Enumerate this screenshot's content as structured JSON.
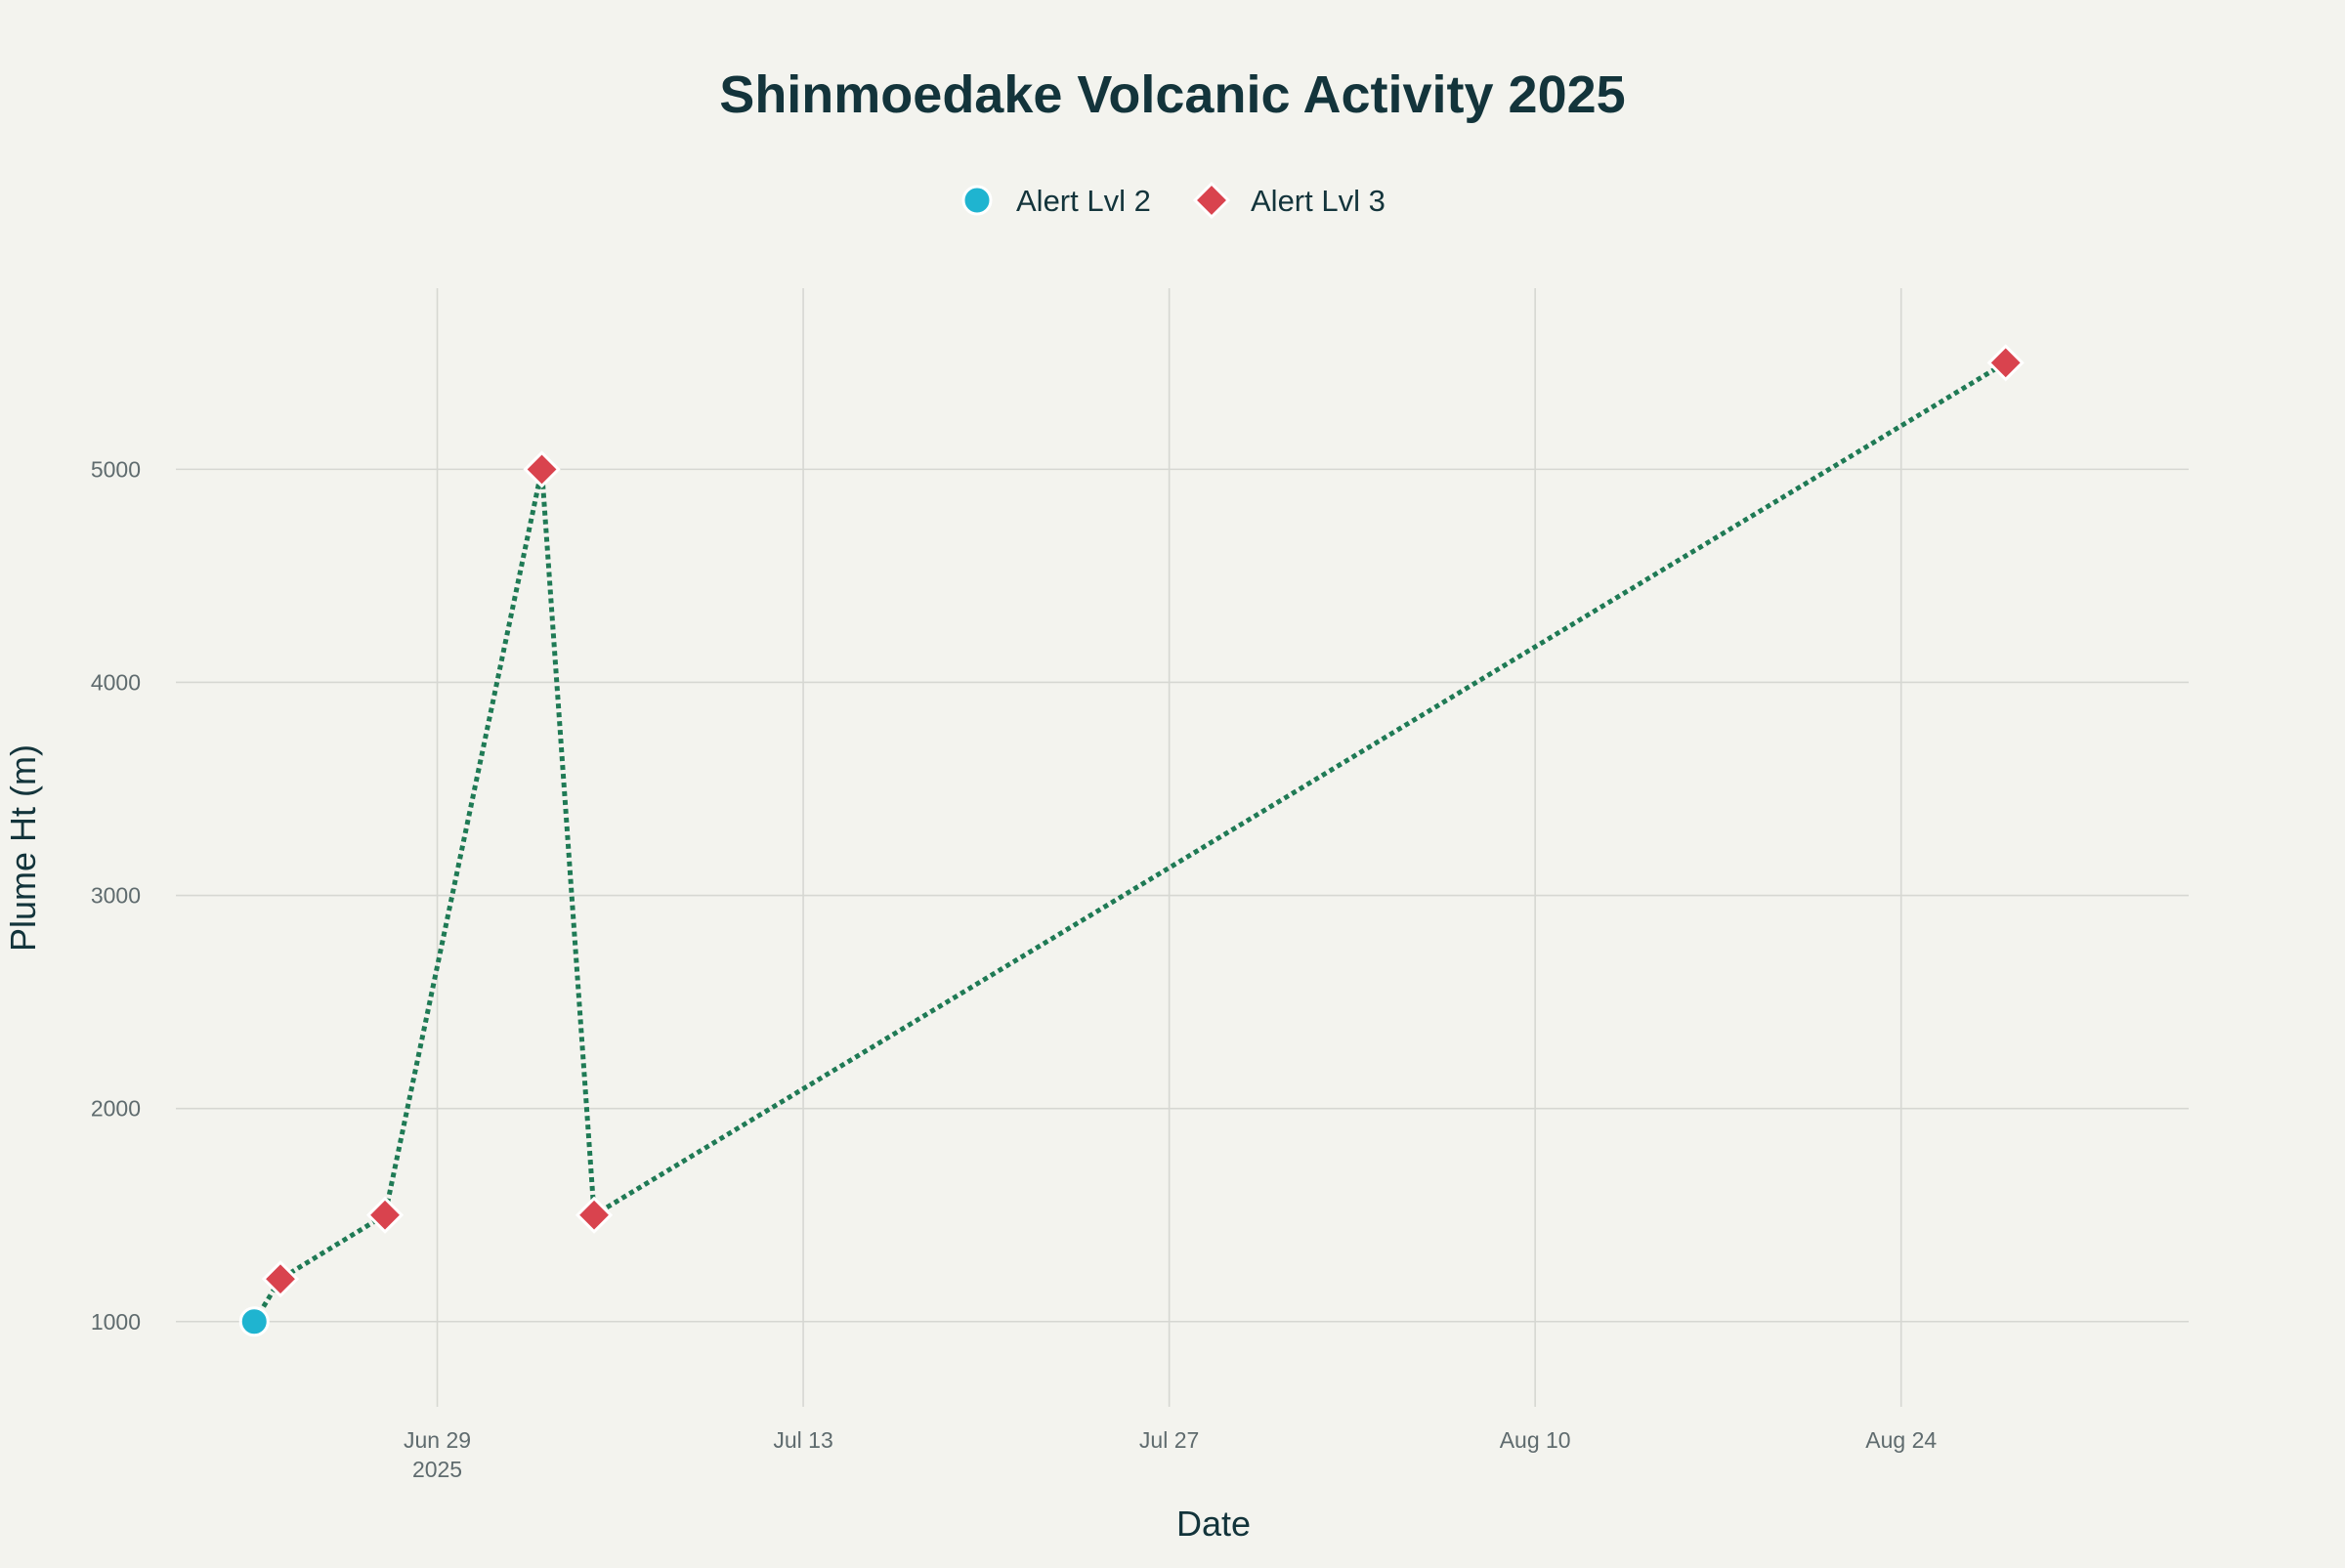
{
  "chart_data": {
    "type": "line",
    "title": "Shinmoedake Volcanic Activity 2025",
    "xlabel": "Date",
    "ylabel": "Plume Ht (m)",
    "x_axis_type": "date",
    "xlim": [
      "2025-06-19",
      "2025-09-04"
    ],
    "ylim": [
      600,
      5850
    ],
    "x_ticks": [
      {
        "date": "2025-06-29",
        "label": "Jun 29",
        "sublabel": "2025"
      },
      {
        "date": "2025-07-13",
        "label": "Jul 13",
        "sublabel": ""
      },
      {
        "date": "2025-07-27",
        "label": "Jul 27",
        "sublabel": ""
      },
      {
        "date": "2025-08-10",
        "label": "Aug 10",
        "sublabel": ""
      },
      {
        "date": "2025-08-24",
        "label": "Aug 24",
        "sublabel": ""
      }
    ],
    "y_ticks": [
      1000,
      2000,
      3000,
      4000,
      5000
    ],
    "grid": true,
    "legend_position": "top-center",
    "connector": {
      "style": "dotted",
      "color": "#1f7a55"
    },
    "series": [
      {
        "name": "Alert Lvl 2",
        "marker": "circle",
        "color": "#1fb4d0",
        "points": [
          {
            "x": "2025-06-22",
            "y": 1000
          }
        ]
      },
      {
        "name": "Alert Lvl 3",
        "marker": "diamond",
        "color": "#d9434e",
        "points": [
          {
            "x": "2025-06-23",
            "y": 1200
          },
          {
            "x": "2025-06-27",
            "y": 1500
          },
          {
            "x": "2025-07-03",
            "y": 5000
          },
          {
            "x": "2025-07-05",
            "y": 1500
          },
          {
            "x": "2025-08-28",
            "y": 5500
          }
        ]
      }
    ]
  }
}
